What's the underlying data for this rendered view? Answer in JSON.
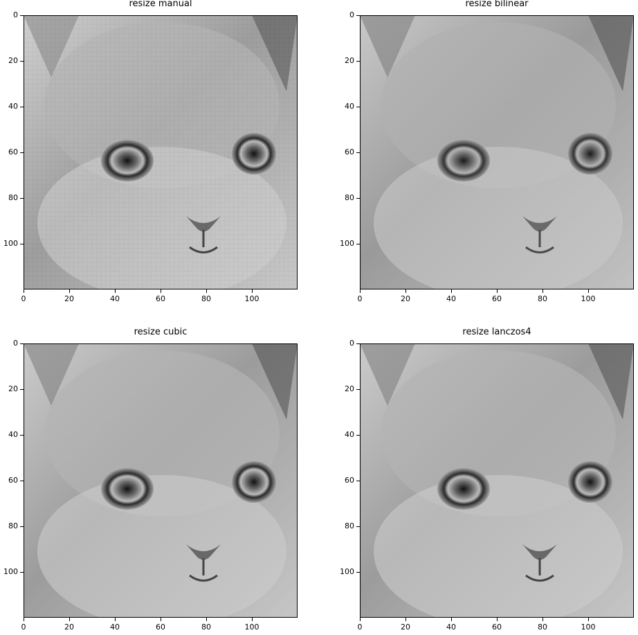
{
  "panels": [
    {
      "id": "manual",
      "title": "resize manual"
    },
    {
      "id": "bilinear",
      "title": "resize bilinear"
    },
    {
      "id": "cubic",
      "title": "resize cubic"
    },
    {
      "id": "lanczos4",
      "title": "resize lanczos4"
    }
  ],
  "axes": {
    "x_ticks": [
      "0",
      "20",
      "40",
      "60",
      "80",
      "100"
    ],
    "y_ticks": [
      "0",
      "20",
      "40",
      "60",
      "80",
      "100"
    ],
    "range": [
      0,
      120
    ]
  },
  "image": {
    "subject": "grayscale kitten face close-up",
    "colormap": "gray"
  }
}
